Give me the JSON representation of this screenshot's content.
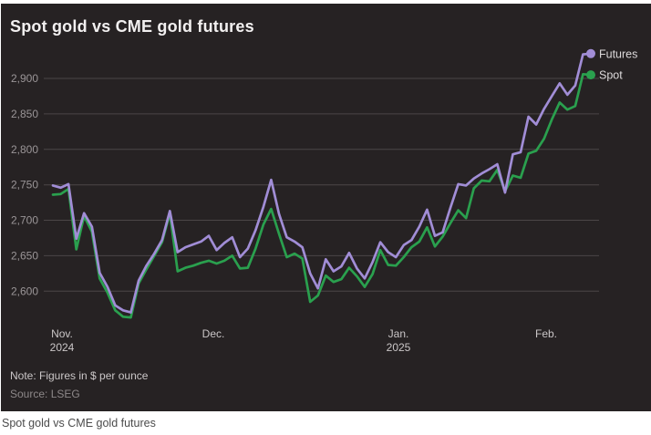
{
  "header": {
    "title": "Spot gold vs CME gold futures"
  },
  "footer": {
    "note": "Note: Figures in $ per ounce",
    "source": "Source: LSEG",
    "caption": "Spot gold vs CME gold futures"
  },
  "colors": {
    "page_bg": "#ffffff",
    "panel_bg": "#262223",
    "grid": "#4b4647",
    "title": "#f2f0f0",
    "ytick": "#9a9597",
    "xtick": "#cac6c7",
    "note": "#cbc7c8",
    "source": "#8d8889",
    "legend_text": "#dcd9da",
    "caption": "#4b4b4b",
    "futures": "#a18dd6",
    "spot": "#2aa04e"
  },
  "chart_data": {
    "type": "line",
    "title": "Spot gold vs CME gold futures",
    "unit": "$ per ounce",
    "grid": "horizontal",
    "legend_position": "line-end",
    "ylim": [
      2550,
      2940
    ],
    "y_axis": {
      "ticks": [
        {
          "value": 2900,
          "label": "2,900"
        },
        {
          "value": 2850,
          "label": "2,850"
        },
        {
          "value": 2800,
          "label": "2,800"
        },
        {
          "value": 2750,
          "label": "2,750"
        },
        {
          "value": 2700,
          "label": "2,700"
        },
        {
          "value": 2650,
          "label": "2,650"
        },
        {
          "value": 2600,
          "label": "2,600"
        }
      ]
    },
    "x_axis": {
      "ticks": [
        {
          "label": "Nov.",
          "sublabel": "2024",
          "i": 1.17
        },
        {
          "label": "Dec.",
          "sublabel": "",
          "i": 20.58
        },
        {
          "label": "Jan.",
          "sublabel": "2025",
          "i": 44.32
        },
        {
          "label": "Feb.",
          "sublabel": "",
          "i": 63.27
        }
      ]
    },
    "x": [
      "Nov. 1",
      "Nov. 4",
      "Nov. 5",
      "Nov. 6",
      "Nov. 7",
      "Nov. 8",
      "Nov. 11",
      "Nov. 12",
      "Nov. 13",
      "Nov. 14",
      "Nov. 15",
      "Nov. 18",
      "Nov. 19",
      "Nov. 20",
      "Nov. 21",
      "Nov. 22",
      "Nov. 25",
      "Nov. 26",
      "Nov. 27",
      "Nov. 28",
      "Nov. 29",
      "Dec. 2",
      "Dec. 3",
      "Dec. 4",
      "Dec. 5",
      "Dec. 6",
      "Dec. 9",
      "Dec. 10",
      "Dec. 11",
      "Dec. 12",
      "Dec. 13",
      "Dec. 16",
      "Dec. 17",
      "Dec. 18",
      "Dec. 19",
      "Dec. 20",
      "Dec. 23",
      "Dec. 24",
      "Dec. 26",
      "Dec. 27",
      "Dec. 30",
      "Dec. 31",
      "Jan. 2",
      "Jan. 3",
      "Jan. 6",
      "Jan. 7",
      "Jan. 8",
      "Jan. 9",
      "Jan. 10",
      "Jan. 13",
      "Jan. 14",
      "Jan. 15",
      "Jan. 16",
      "Jan. 17",
      "Jan. 21",
      "Jan. 22",
      "Jan. 23",
      "Jan. 24",
      "Jan. 27",
      "Jan. 28",
      "Jan. 29",
      "Jan. 30",
      "Jan. 31",
      "Feb. 3",
      "Feb. 4",
      "Feb. 5",
      "Feb. 6",
      "Feb. 7",
      "Feb. 10",
      "Feb. 11"
    ],
    "series": [
      {
        "name": "Futures",
        "color": "#a18dd6",
        "values": [
          2749,
          2746,
          2751,
          2674,
          2710,
          2691,
          2626,
          2606,
          2580,
          2573,
          2570,
          2615,
          2636,
          2653,
          2672,
          2713,
          2655,
          2662,
          2666,
          2670,
          2678,
          2658,
          2668,
          2676,
          2648,
          2660,
          2686,
          2719,
          2757,
          2709,
          2676,
          2670,
          2662,
          2625,
          2604,
          2645,
          2628,
          2635,
          2654,
          2632,
          2618,
          2641,
          2669,
          2655,
          2648,
          2665,
          2672,
          2691,
          2715,
          2678,
          2683,
          2718,
          2751,
          2749,
          2759,
          2766,
          2772,
          2779,
          2739,
          2793,
          2796,
          2846,
          2835,
          2857,
          2875,
          2893,
          2877,
          2890,
          2934,
          2935
        ]
      },
      {
        "name": "Spot",
        "color": "#2aa04e",
        "values": [
          2736,
          2737,
          2744,
          2659,
          2706,
          2684,
          2618,
          2598,
          2573,
          2564,
          2563,
          2611,
          2631,
          2650,
          2669,
          2710,
          2628,
          2633,
          2636,
          2640,
          2643,
          2639,
          2643,
          2650,
          2632,
          2633,
          2660,
          2694,
          2716,
          2681,
          2648,
          2653,
          2646,
          2585,
          2594,
          2622,
          2613,
          2617,
          2633,
          2621,
          2606,
          2624,
          2658,
          2637,
          2636,
          2648,
          2662,
          2670,
          2690,
          2663,
          2677,
          2696,
          2714,
          2703,
          2745,
          2756,
          2755,
          2771,
          2741,
          2763,
          2760,
          2794,
          2798,
          2815,
          2842,
          2866,
          2856,
          2861,
          2906,
          2905
        ]
      }
    ]
  }
}
